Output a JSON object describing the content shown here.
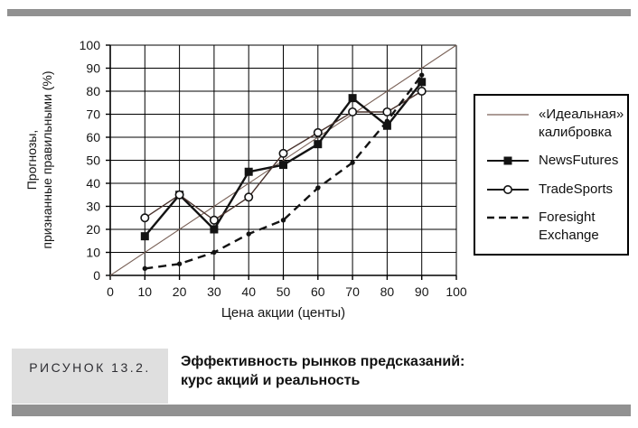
{
  "figure": {
    "label": "РИСУНОК 13.2.",
    "title_lines": [
      "Эффективность рынков предсказаний:",
      "курс акций и реальность"
    ]
  },
  "chart_data": {
    "type": "line",
    "title": "",
    "xlabel": "Цена акции (центы)",
    "ylabel": "Прогнозы, признанные правильными (%)",
    "ylabel_lines": [
      "Прогнозы,",
      "признанные правильными (%)"
    ],
    "xlim": [
      0,
      100
    ],
    "ylim": [
      0,
      100
    ],
    "xticks": [
      0,
      10,
      20,
      30,
      40,
      50,
      60,
      70,
      80,
      90,
      100
    ],
    "yticks": [
      0,
      10,
      20,
      30,
      40,
      50,
      60,
      70,
      80,
      90,
      100
    ],
    "grid": true,
    "legend_position": "right-outside",
    "x": [
      10,
      20,
      30,
      40,
      50,
      60,
      70,
      80,
      90
    ],
    "series": [
      {
        "name": "«Идеальная» калибровка",
        "kind": "ideal",
        "x": [
          0,
          100
        ],
        "values": [
          0,
          100
        ]
      },
      {
        "name": "NewsFutures",
        "kind": "marker-line",
        "marker": "filled-square",
        "values": [
          17,
          35,
          20,
          45,
          48,
          57,
          77,
          65,
          84
        ]
      },
      {
        "name": "TradeSports",
        "kind": "marker-line",
        "marker": "open-circle",
        "values": [
          25,
          35,
          24,
          34,
          53,
          62,
          71,
          71,
          80
        ]
      },
      {
        "name": "Foresight Exchange",
        "kind": "dashed-line",
        "marker": "small-dot",
        "values": [
          3,
          5,
          10,
          18,
          24,
          38,
          49,
          67,
          87
        ]
      }
    ]
  },
  "legend": {
    "items": [
      {
        "lines": [
          "«Идеальная»",
          "калибровка"
        ],
        "swatch": "thin-line"
      },
      {
        "lines": [
          "NewsFutures"
        ],
        "swatch": "line-filled-square"
      },
      {
        "lines": [
          "TradeSports"
        ],
        "swatch": "line-open-circle"
      },
      {
        "lines": [
          "Foresight",
          "Exchange"
        ],
        "swatch": "dashed-line"
      }
    ]
  },
  "colors": {
    "grid": "#000000",
    "ideal_line": "#7a6258",
    "tradesports_line": "#4a332d",
    "series_black": "#131313",
    "divider_bar": "#919191",
    "caption_box": "#dfdfdf"
  }
}
